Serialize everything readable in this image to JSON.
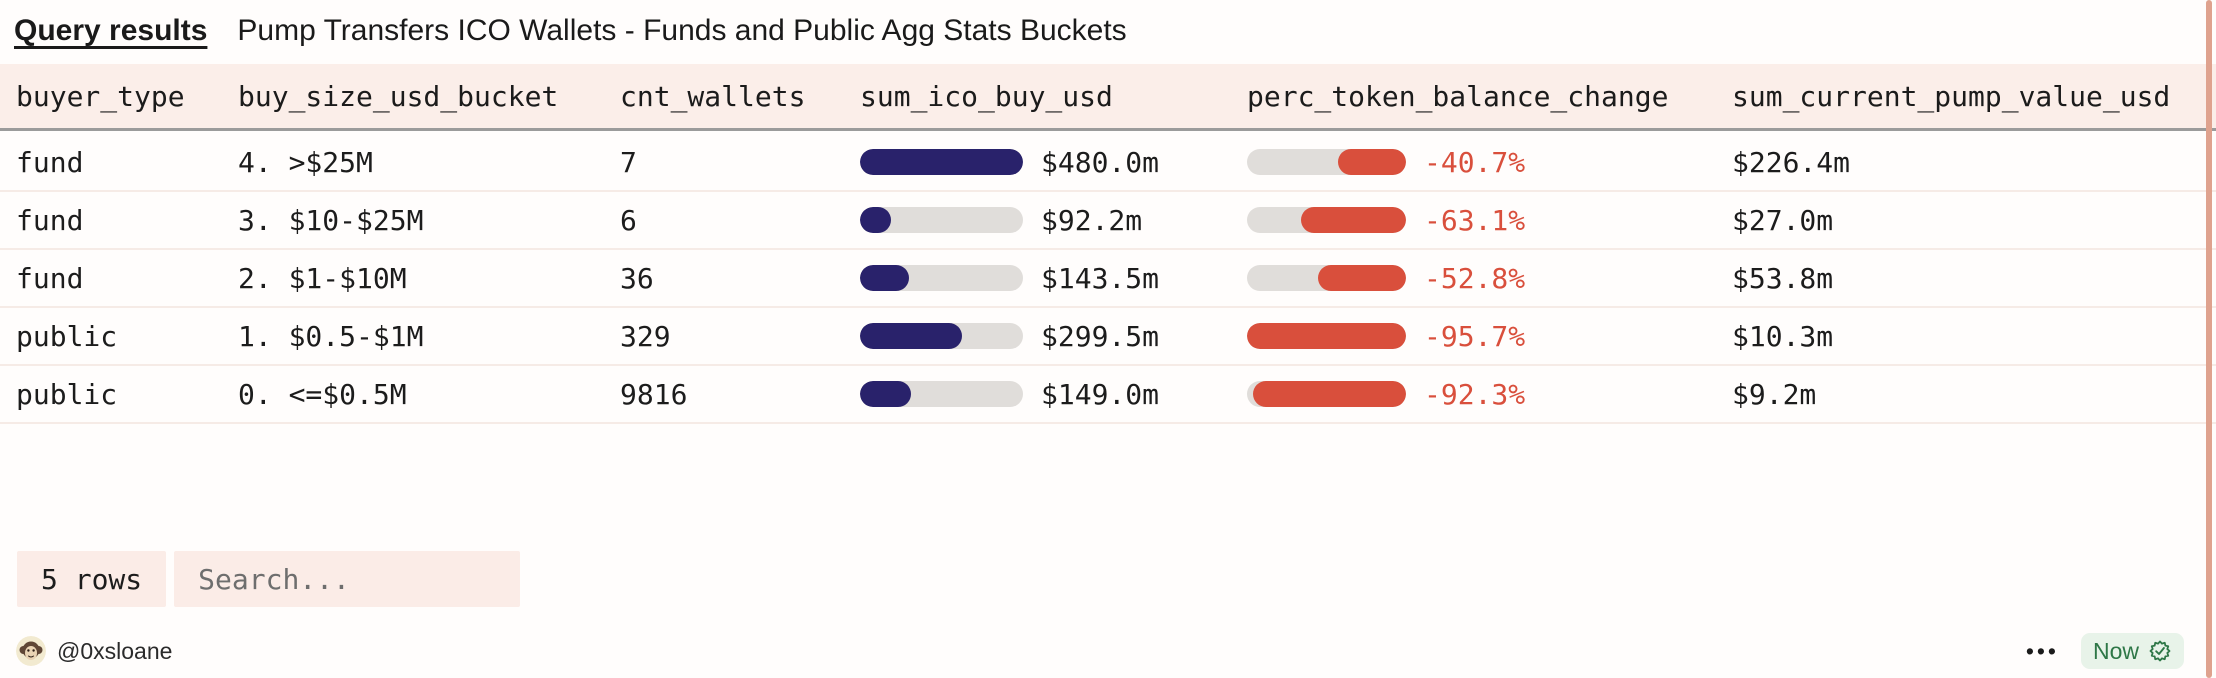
{
  "title_bar": {
    "tab_label": "Query results",
    "title": "Pump Transfers ICO Wallets - Funds and Public Agg Stats Buckets"
  },
  "table": {
    "columns": [
      "buyer_type",
      "buy_size_usd_bucket",
      "cnt_wallets",
      "sum_ico_buy_usd",
      "perc_token_balance_change",
      "sum_current_pump_value_usd"
    ],
    "rows": [
      {
        "buyer_type": "fund",
        "bucket": "4. >$25M",
        "cnt_wallets": "7",
        "ico_value": "$480.0m",
        "ico_w": "100%",
        "perc_value": "-40.7%",
        "perc_w": "42.5%",
        "pump_value": "$226.4m"
      },
      {
        "buyer_type": "fund",
        "bucket": "3. $10-$25M",
        "cnt_wallets": "6",
        "ico_value": "$92.2m",
        "ico_w": "19.2%",
        "perc_value": "-63.1%",
        "perc_w": "65.9%",
        "pump_value": "$27.0m"
      },
      {
        "buyer_type": "fund",
        "bucket": "2. $1-$10M",
        "cnt_wallets": "36",
        "ico_value": "$143.5m",
        "ico_w": "29.9%",
        "perc_value": "-52.8%",
        "perc_w": "55.2%",
        "pump_value": "$53.8m"
      },
      {
        "buyer_type": "public",
        "bucket": "1. $0.5-$1M",
        "cnt_wallets": "329",
        "ico_value": "$299.5m",
        "ico_w": "62.4%",
        "perc_value": "-95.7%",
        "perc_w": "100%",
        "pump_value": "$10.3m"
      },
      {
        "buyer_type": "public",
        "bucket": "0. <=$0.5M",
        "cnt_wallets": "9816",
        "ico_value": "$149.0m",
        "ico_w": "31.0%",
        "perc_value": "-92.3%",
        "perc_w": "96.4%",
        "pump_value": "$9.2m"
      }
    ]
  },
  "footer": {
    "rows_count": "5 rows",
    "search_placeholder": "Search...",
    "author": "@0xsloane",
    "overflow_menu": "•••",
    "refresh_status": "Now"
  },
  "colors": {
    "accent_navy": "#29226b",
    "accent_red": "#d94f3c",
    "header_bg": "#fbeee9",
    "pill_bg": "#fbece7",
    "status_green_text": "#2e7747",
    "status_green_bg": "#e8f3e9",
    "scrollbar": "#dfa28e"
  }
}
